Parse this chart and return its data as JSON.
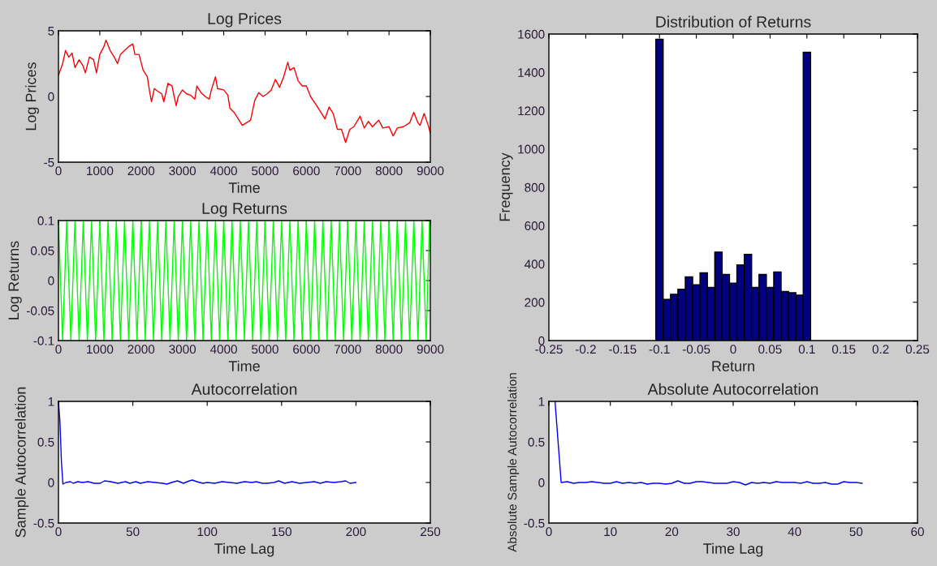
{
  "chart_data": [
    {
      "type": "line",
      "title": "Log Prices",
      "xlabel": "Time",
      "ylabel": "Log Prices",
      "xlim": [
        0,
        9000
      ],
      "xticks": [
        0,
        1000,
        2000,
        3000,
        4000,
        5000,
        6000,
        7000,
        8000,
        9000
      ],
      "ylim": [
        -5,
        5
      ],
      "yticks": [
        -5,
        0,
        5
      ],
      "grid": false,
      "legend": false,
      "series": [
        {
          "color": "#ff0000",
          "x": [
            0,
            100,
            170,
            250,
            330,
            400,
            500,
            600,
            650,
            750,
            850,
            920,
            1000,
            1100,
            1150,
            1250,
            1350,
            1430,
            1500,
            1600,
            1700,
            1800,
            1850,
            1950,
            2050,
            2150,
            2200,
            2250,
            2320,
            2400,
            2500,
            2550,
            2650,
            2750,
            2800,
            2850,
            2900,
            3000,
            3100,
            3200,
            3300,
            3350,
            3450,
            3550,
            3650,
            3700,
            3800,
            3850,
            4000,
            4100,
            4150,
            4250,
            4350,
            4450,
            4550,
            4650,
            4750,
            4850,
            4950,
            5050,
            5150,
            5250,
            5350,
            5450,
            5550,
            5600,
            5700,
            5800,
            5900,
            6000,
            6100,
            6250,
            6350,
            6450,
            6550,
            6650,
            6750,
            6850,
            6950,
            7050,
            7150,
            7300,
            7400,
            7500,
            7600,
            7750,
            7850,
            8000,
            8100,
            8200,
            8350,
            8500,
            8600,
            8700,
            8750,
            8850,
            8950,
            9000
          ],
          "values": [
            1.6,
            2.5,
            3.5,
            3.0,
            3.3,
            2.2,
            2.8,
            2.3,
            1.8,
            3.0,
            2.8,
            1.8,
            3.2,
            3.8,
            4.3,
            3.5,
            3.0,
            2.5,
            3.2,
            3.5,
            3.8,
            4.0,
            3.2,
            3.2,
            2.0,
            1.5,
            0.5,
            -0.4,
            0.6,
            0.4,
            0.2,
            -0.4,
            1.0,
            0.8,
            0.0,
            -0.7,
            0.0,
            0.5,
            0.2,
            0.1,
            -0.2,
            0.8,
            0.3,
            0.0,
            -0.2,
            0.5,
            1.5,
            0.6,
            0.5,
            0.1,
            -0.9,
            -1.2,
            -1.7,
            -2.2,
            -2.0,
            -1.8,
            -0.3,
            0.3,
            0.0,
            0.2,
            0.5,
            1.3,
            0.7,
            1.5,
            2.6,
            2.0,
            2.2,
            1.2,
            0.8,
            0.8,
            0.0,
            -0.7,
            -1.2,
            -1.7,
            -0.8,
            -1.3,
            -2.5,
            -2.5,
            -3.5,
            -2.5,
            -2.3,
            -1.5,
            -2.4,
            -1.9,
            -2.3,
            -1.8,
            -2.4,
            -2.3,
            -3.0,
            -2.4,
            -2.3,
            -2.0,
            -1.2,
            -2.0,
            -2.2,
            -1.3,
            -2.2,
            -2.8
          ]
        }
      ]
    },
    {
      "type": "histogram",
      "title": "Distribution of Returns",
      "xlabel": "Return",
      "ylabel": "Frequency",
      "xlim": [
        -0.25,
        0.25
      ],
      "xticks": [
        -0.25,
        -0.2,
        -0.15,
        -0.1,
        -0.05,
        0,
        0.05,
        0.1,
        0.15,
        0.2,
        0.25
      ],
      "ylim": [
        0,
        1600
      ],
      "yticks": [
        0,
        200,
        400,
        600,
        800,
        1000,
        1200,
        1400,
        1600
      ],
      "grid": false,
      "legend": false,
      "color": "#000080",
      "bins": [
        -0.105,
        -0.095,
        -0.085,
        -0.075,
        -0.065,
        -0.055,
        -0.045,
        -0.035,
        -0.025,
        -0.015,
        -0.005,
        0.005,
        0.015,
        0.025,
        0.035,
        0.045,
        0.055,
        0.065,
        0.075,
        0.085,
        0.095,
        0.105
      ],
      "values": [
        1573,
        215,
        242,
        268,
        332,
        291,
        354,
        277,
        462,
        345,
        300,
        395,
        450,
        277,
        345,
        277,
        358,
        256,
        250,
        237,
        1505
      ]
    },
    {
      "type": "line",
      "title": "Log Returns",
      "xlabel": "Time",
      "ylabel": "Log Returns",
      "xlim": [
        0,
        9000
      ],
      "xticks": [
        0,
        1000,
        2000,
        3000,
        4000,
        5000,
        6000,
        7000,
        8000,
        9000
      ],
      "ylim": [
        -0.1,
        0.1
      ],
      "yticks": [
        -0.1,
        -0.05,
        0,
        0.05,
        0.1
      ],
      "grid": false,
      "legend": false,
      "series": [
        {
          "color": "#00ff00",
          "x": [
            0,
            100,
            200,
            300,
            400,
            500,
            600,
            700,
            800,
            900,
            1000,
            1100,
            1200,
            1300,
            1400,
            1500,
            1600,
            1700,
            1800,
            1900,
            2000,
            2100,
            2200,
            2300,
            2400,
            2500,
            2600,
            2700,
            2800,
            2900,
            3000,
            3100,
            3200,
            3300,
            3400,
            3500,
            3600,
            3700,
            3800,
            3900,
            4000,
            4100,
            4200,
            4300,
            4400,
            4500,
            4600,
            4700,
            4800,
            4900,
            5000,
            5100,
            5200,
            5300,
            5400,
            5500,
            5600,
            5700,
            5800,
            5900,
            6000,
            6100,
            6200,
            6300,
            6400,
            6500,
            6600,
            6700,
            6800,
            6900,
            7000,
            7100,
            7200,
            7300,
            7400,
            7500,
            7600,
            7700,
            7800,
            7900,
            8000,
            8100,
            8200,
            8300,
            8400,
            8500,
            8600,
            8700,
            8800,
            8900,
            8980
          ],
          "values": [
            0.1,
            -0.1,
            0.1,
            -0.1,
            0.1,
            -0.1,
            0.1,
            -0.1,
            0.1,
            -0.1,
            0.1,
            -0.1,
            0.1,
            -0.1,
            0.1,
            -0.1,
            0.1,
            -0.1,
            0.1,
            -0.1,
            0.1,
            -0.1,
            0.1,
            -0.1,
            0.1,
            -0.1,
            0.1,
            -0.1,
            0.1,
            -0.1,
            0.1,
            -0.1,
            0.1,
            -0.1,
            0.1,
            -0.1,
            0.1,
            -0.1,
            0.1,
            -0.1,
            0.1,
            -0.1,
            0.1,
            -0.1,
            0.1,
            -0.1,
            0.1,
            -0.1,
            0.1,
            -0.1,
            0.1,
            -0.1,
            0.1,
            -0.1,
            0.1,
            -0.1,
            0.1,
            -0.1,
            0.1,
            -0.1,
            0.1,
            -0.1,
            0.1,
            -0.1,
            0.1,
            -0.1,
            0.1,
            -0.1,
            0.1,
            -0.1,
            0.1,
            -0.1,
            0.1,
            -0.1,
            0.1,
            -0.1,
            0.1,
            -0.1,
            0.1,
            -0.1,
            0.1,
            -0.1,
            0.1,
            -0.1,
            0.1,
            -0.1,
            0.1,
            -0.1,
            0.1,
            -0.1,
            0.1
          ]
        }
      ]
    },
    {
      "type": "line",
      "title": "Autocorrelation",
      "xlabel": "Time Lag",
      "ylabel": "Sample Autocorrelation",
      "xlim": [
        0,
        250
      ],
      "xticks": [
        0,
        50,
        100,
        150,
        200,
        250
      ],
      "ylim": [
        -0.5,
        1
      ],
      "yticks": [
        -0.5,
        0,
        0.5,
        1
      ],
      "grid": false,
      "legend": false,
      "series": [
        {
          "color": "#0000ff",
          "x": [
            0,
            1,
            2,
            3,
            5,
            8,
            10,
            13,
            16,
            20,
            24,
            28,
            31,
            35,
            40,
            45,
            48,
            52,
            55,
            60,
            65,
            70,
            73,
            76,
            80,
            84,
            88,
            90,
            93,
            97,
            100,
            105,
            110,
            115,
            120,
            125,
            130,
            133,
            137,
            140,
            145,
            148,
            152,
            157,
            162,
            167,
            172,
            176,
            180,
            185,
            190,
            193,
            196,
            200
          ],
          "values": [
            1,
            0.75,
            0.25,
            -0.02,
            0.0,
            0.01,
            -0.01,
            0.01,
            0.0,
            0.01,
            -0.01,
            -0.01,
            0.02,
            0.01,
            -0.01,
            0.01,
            -0.01,
            0.01,
            -0.01,
            0.01,
            0.0,
            -0.01,
            -0.02,
            0.0,
            0.02,
            -0.01,
            0.02,
            0.03,
            0.01,
            -0.01,
            0.0,
            -0.01,
            0.01,
            0.0,
            -0.01,
            0.01,
            0.0,
            0.01,
            -0.01,
            -0.01,
            0.0,
            0.02,
            -0.01,
            0.01,
            -0.01,
            0.0,
            0.01,
            -0.01,
            0.01,
            0.0,
            0.01,
            0.02,
            -0.01,
            0.0
          ]
        }
      ]
    },
    {
      "type": "line",
      "title": "Absolute Autocorrelation",
      "xlabel": "Time Lag",
      "ylabel": "Absolute Sample Autocorrelation",
      "xlim": [
        0,
        60
      ],
      "xticks": [
        0,
        10,
        20,
        30,
        40,
        50,
        60
      ],
      "ylim": [
        -0.5,
        1
      ],
      "yticks": [
        -0.5,
        0,
        0.5,
        1
      ],
      "grid": false,
      "legend": false,
      "series": [
        {
          "color": "#0000ff",
          "x": [
            1,
            2,
            3,
            4,
            5,
            6,
            7,
            8,
            9,
            10,
            11,
            12,
            13,
            14,
            15,
            16,
            17,
            18,
            19,
            20,
            21,
            22,
            23,
            24,
            25,
            26,
            27,
            28,
            29,
            30,
            31,
            32,
            33,
            34,
            35,
            36,
            37,
            38,
            39,
            40,
            41,
            42,
            43,
            44,
            45,
            46,
            47,
            48,
            49,
            50,
            51
          ],
          "values": [
            1.0,
            0.0,
            0.01,
            -0.01,
            0.0,
            0.0,
            0.01,
            0.0,
            -0.01,
            -0.01,
            0.01,
            -0.01,
            0.0,
            -0.01,
            0.0,
            -0.02,
            -0.01,
            -0.01,
            -0.02,
            -0.01,
            0.02,
            -0.01,
            -0.01,
            0.01,
            0.01,
            0.0,
            -0.01,
            -0.01,
            -0.01,
            0.01,
            0.0,
            -0.03,
            0.0,
            -0.01,
            0.0,
            -0.01,
            0.01,
            0.0,
            0.0,
            0.0,
            -0.01,
            0.01,
            -0.01,
            -0.01,
            0.0,
            -0.02,
            -0.02,
            0.01,
            0.0,
            0.0,
            -0.01
          ]
        }
      ]
    }
  ]
}
